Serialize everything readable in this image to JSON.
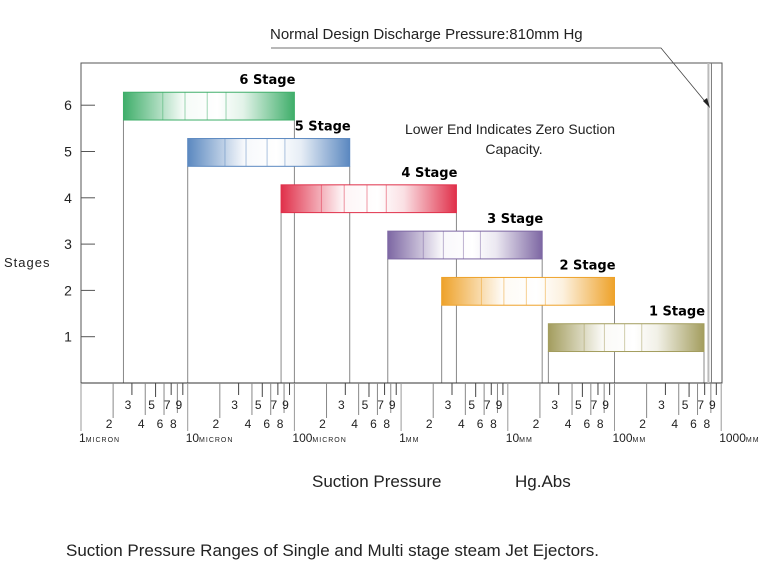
{
  "chart_data": {
    "type": "bar",
    "orientation": "horizontal-range",
    "title": "Suction Pressure Ranges of Single and Multi stage steam Jet Ejectors.",
    "xlabel": "Suction Pressure",
    "xlabel_unit": "Hg.Abs",
    "ylabel": "Stages",
    "x_scale": "log",
    "x_unit": "mm Hg",
    "xlim": [
      0.001,
      1000
    ],
    "ylim": [
      0,
      6.8
    ],
    "yticks": [
      "1",
      "2",
      "3",
      "4",
      "5",
      "6"
    ],
    "x_decade_labels": [
      {
        "value": 0.001,
        "num": "1",
        "unit": "MICRON"
      },
      {
        "value": 0.01,
        "num": "10",
        "unit": "MICRON"
      },
      {
        "value": 0.1,
        "num": "100",
        "unit": "MICRON"
      },
      {
        "value": 1,
        "num": "1",
        "unit": "MM"
      },
      {
        "value": 10,
        "num": "10",
        "unit": "MM"
      },
      {
        "value": 100,
        "num": "100",
        "unit": "MM"
      },
      {
        "value": 1000,
        "num": "1000",
        "unit": "MM"
      }
    ],
    "x_minor_labels": [
      "2",
      "3",
      "4",
      "5",
      "6",
      "7",
      "8",
      "9"
    ],
    "grid": false,
    "series": [
      {
        "name": "6 Stage",
        "stage": 6,
        "low": 0.0025,
        "high": 0.1,
        "color": "#3fae6a"
      },
      {
        "name": "5 Stage",
        "stage": 5,
        "low": 0.01,
        "high": 0.33,
        "color": "#5b88c0"
      },
      {
        "name": "4 Stage",
        "stage": 4,
        "low": 0.075,
        "high": 3.3,
        "color": "#e0304a"
      },
      {
        "name": "3 Stage",
        "stage": 3,
        "low": 0.75,
        "high": 21,
        "color": "#7d67a3"
      },
      {
        "name": "2 Stage",
        "stage": 2,
        "low": 2.4,
        "high": 100,
        "color": "#eea22a"
      },
      {
        "name": "1 Stage",
        "stage": 1,
        "low": 24,
        "high": 690,
        "color": "#a39d5e"
      }
    ],
    "annotations": {
      "lower_end_note_line1": "Lower End Indicates Zero Suction",
      "lower_end_note_line2": "Capacity.",
      "discharge_label": "Normal Design Discharge Pressure:810mm Hg",
      "discharge_value": 810
    }
  }
}
